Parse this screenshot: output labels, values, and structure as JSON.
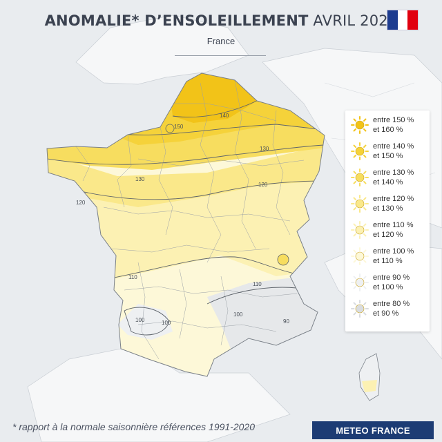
{
  "header": {
    "title_bold": "ANOMALIE* D’ENSOLEILLEMENT",
    "title_light": "AVRIL 2025",
    "subtitle": "France"
  },
  "legend": {
    "items": [
      {
        "line1": "entre 150 %",
        "line2": "et 160 %",
        "color": "#f2c318"
      },
      {
        "line1": "entre 140 %",
        "line2": "et 150 %",
        "color": "#f5d23a"
      },
      {
        "line1": "entre 130 %",
        "line2": "et 140 %",
        "color": "#f7dd5f"
      },
      {
        "line1": "entre 120 %",
        "line2": "et 130 %",
        "color": "#fae88a"
      },
      {
        "line1": "entre 110 %",
        "line2": "et 120 %",
        "color": "#fcf1b3"
      },
      {
        "line1": "entre 100 %",
        "line2": "et 110 %",
        "color": "#fdf8d8"
      },
      {
        "line1": "entre 90 %",
        "line2": "et 100 %",
        "color": "#eef0f2"
      },
      {
        "line1": "entre 80 %",
        "line2": "et 90 %",
        "color": "#d9dce0"
      }
    ]
  },
  "contours": {
    "labels": [
      "150",
      "140",
      "130",
      "130",
      "120",
      "120",
      "110",
      "110",
      "100",
      "100",
      "90",
      "100"
    ]
  },
  "footer": {
    "note": "* rapport à la normale saisonnière références 1991-2020",
    "brand": "METEO FRANCE"
  },
  "flag_colors": [
    "#1d3c8f",
    "#ffffff",
    "#e1000f"
  ]
}
